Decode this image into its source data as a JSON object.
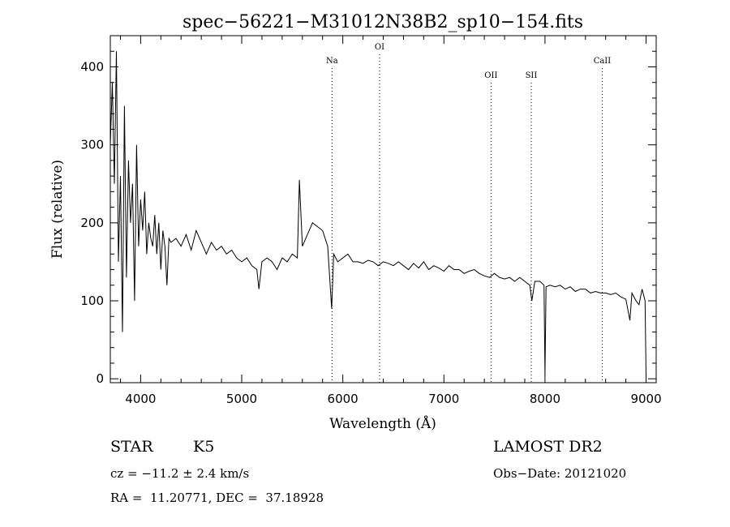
{
  "chart_data": {
    "type": "line",
    "title": "spec−56221−M31012N38B2_sp10−154.fits",
    "xlabel": "Wavelength (Å)",
    "ylabel": "Flux (relative)",
    "xlim": [
      3700,
      9100
    ],
    "ylim": [
      -5,
      440
    ],
    "xticks": [
      4000,
      5000,
      6000,
      7000,
      8000,
      9000
    ],
    "yticks": [
      0,
      100,
      200,
      300,
      400
    ],
    "grid": false,
    "lines": [
      {
        "label": "Na",
        "x": 5893
      },
      {
        "label": "OI",
        "x": 6364
      },
      {
        "label": "OII",
        "x": 7466
      },
      {
        "label": "SII",
        "x": 7864
      },
      {
        "label": "CaII",
        "x": 8566
      }
    ],
    "series": [
      {
        "x": [
          3700,
          3720,
          3740,
          3760,
          3780,
          3800,
          3820,
          3840,
          3860,
          3880,
          3900,
          3920,
          3940,
          3960,
          3980,
          4000,
          4020,
          4040,
          4060,
          4080,
          4100,
          4120,
          4140,
          4160,
          4180,
          4200,
          4220,
          4240,
          4260,
          4280,
          4300,
          4350,
          4400,
          4450,
          4500,
          4550,
          4600,
          4650,
          4700,
          4750,
          4800,
          4850,
          4900,
          4950,
          5000,
          5050,
          5100,
          5150,
          5170,
          5200,
          5250,
          5300,
          5350,
          5400,
          5450,
          5500,
          5550,
          5570,
          5600,
          5650,
          5700,
          5750,
          5800,
          5850,
          5890,
          5910,
          5950,
          6000,
          6050,
          6100,
          6150,
          6200,
          6250,
          6300,
          6350,
          6400,
          6450,
          6500,
          6550,
          6600,
          6650,
          6700,
          6750,
          6800,
          6850,
          6900,
          6950,
          7000,
          7050,
          7100,
          7150,
          7200,
          7250,
          7300,
          7350,
          7400,
          7450,
          7500,
          7550,
          7600,
          7650,
          7700,
          7750,
          7800,
          7850,
          7870,
          7900,
          7950,
          7990,
          8000,
          8010,
          8050,
          8100,
          8150,
          8200,
          8250,
          8300,
          8350,
          8400,
          8450,
          8500,
          8550,
          8600,
          8650,
          8700,
          8750,
          8800,
          8840,
          8860,
          8900,
          8930,
          8960,
          8990,
          9000
        ],
        "values": [
          300,
          380,
          250,
          420,
          150,
          260,
          60,
          350,
          130,
          280,
          200,
          250,
          100,
          300,
          170,
          230,
          190,
          240,
          160,
          200,
          180,
          170,
          210,
          160,
          200,
          140,
          190,
          170,
          120,
          180,
          175,
          180,
          170,
          185,
          165,
          190,
          175,
          160,
          175,
          165,
          170,
          160,
          165,
          155,
          150,
          155,
          145,
          140,
          115,
          150,
          155,
          150,
          140,
          155,
          150,
          160,
          155,
          255,
          170,
          185,
          200,
          195,
          190,
          170,
          90,
          160,
          150,
          155,
          160,
          150,
          150,
          148,
          152,
          150,
          145,
          150,
          148,
          145,
          150,
          145,
          140,
          148,
          142,
          150,
          140,
          145,
          142,
          138,
          145,
          140,
          140,
          135,
          138,
          140,
          135,
          132,
          130,
          135,
          130,
          128,
          130,
          125,
          130,
          125,
          120,
          100,
          125,
          125,
          120,
          5,
          118,
          120,
          118,
          120,
          115,
          118,
          112,
          115,
          115,
          110,
          112,
          110,
          110,
          108,
          110,
          105,
          102,
          75,
          110,
          100,
          95,
          115,
          100,
          5
        ]
      }
    ],
    "footer": {
      "class_label": "STAR",
      "subclass": "K5",
      "survey": "LAMOST DR2",
      "cz": "cz = −11.2 ± 2.4 km/s",
      "obs_date": "Obs−Date: 20121020",
      "coords": "RA =  11.20771, DEC =  37.18928"
    }
  }
}
